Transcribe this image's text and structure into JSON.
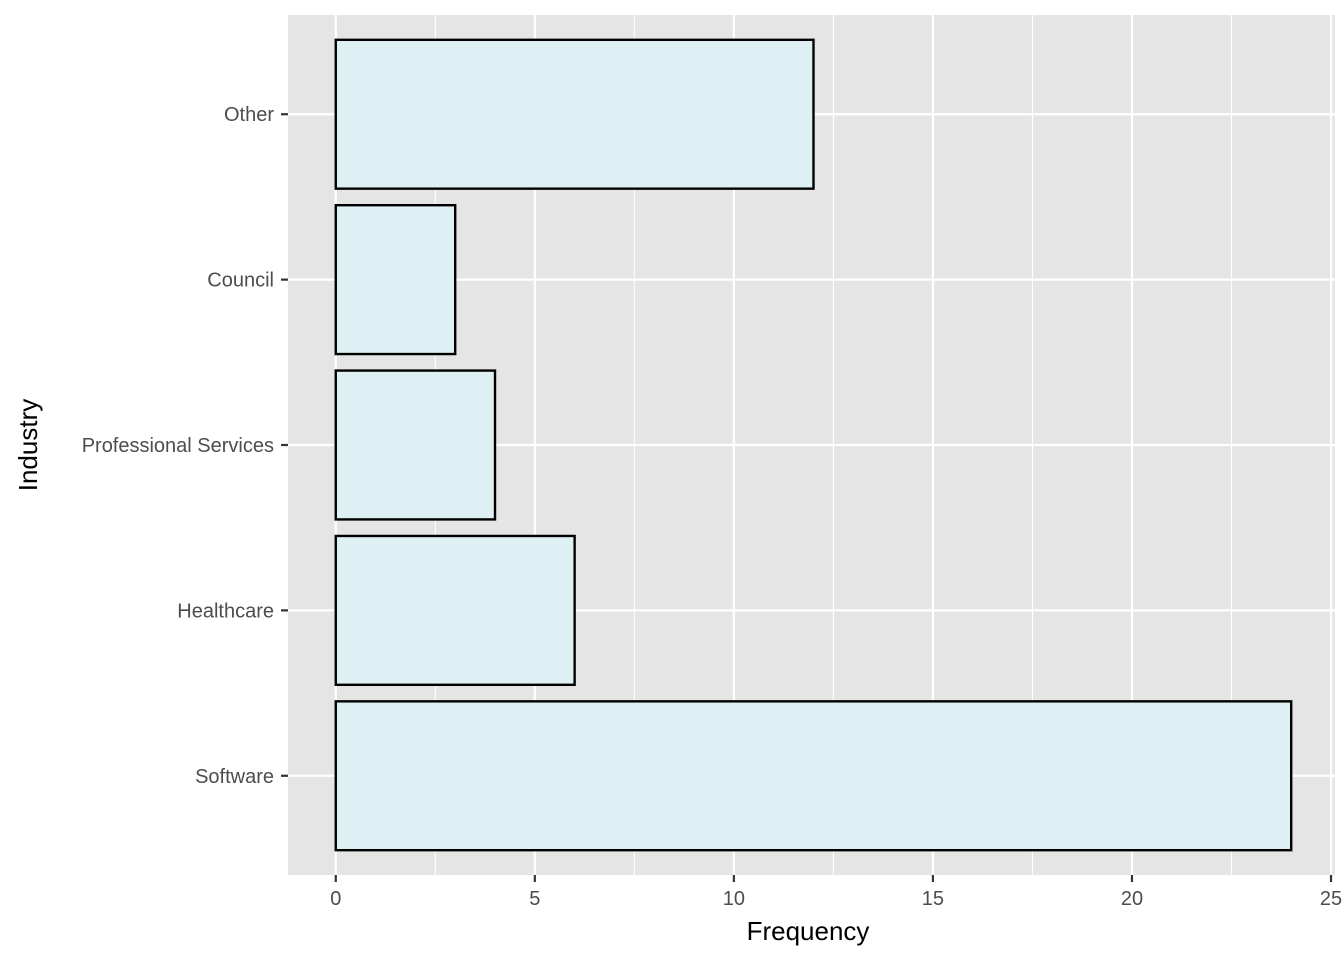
{
  "chart_data": {
    "type": "bar",
    "orientation": "horizontal",
    "categories": [
      "Software",
      "Healthcare",
      "Professional Services",
      "Council",
      "Other"
    ],
    "values": [
      24,
      6,
      4,
      3,
      12
    ],
    "xlabel": "Frequency",
    "ylabel": "Industry",
    "xlim": [
      -1.2,
      25.1
    ],
    "xticks": [
      "0",
      "5",
      "10",
      "15",
      "20",
      "25"
    ],
    "grid": true,
    "legend": "none",
    "colors": {
      "panel": "#e5e5e5",
      "grid": "#ffffff",
      "bar_fill": "#dff0f5",
      "bar_stroke": "#000000",
      "tick_text": "#4d4d4d",
      "tick_mark": "#333333"
    }
  }
}
